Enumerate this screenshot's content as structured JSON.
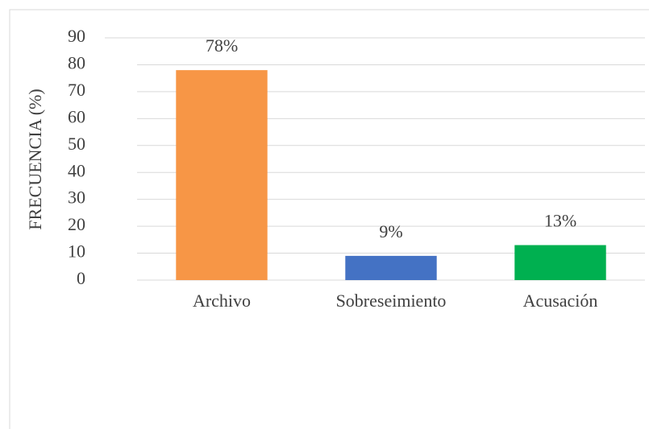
{
  "chart_data": {
    "type": "bar",
    "y_label": "FRECUENCIA (%)",
    "categories": [
      "Archivo",
      "Sobreseimiento",
      "Acusación"
    ],
    "series": [
      {
        "values": [
          78,
          9,
          13
        ],
        "value_labels": [
          "78%",
          "9%",
          "13%"
        ],
        "colors": [
          "#f79646",
          "#4472c4",
          "#00b050"
        ]
      }
    ],
    "ylim": [
      0,
      90
    ],
    "yticks": [
      0,
      10,
      20,
      30,
      40,
      50,
      60,
      70,
      80,
      90
    ],
    "grid": true
  }
}
